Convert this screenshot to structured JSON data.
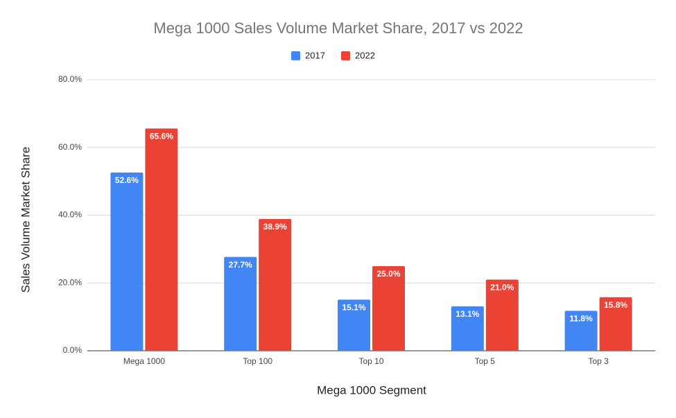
{
  "chart_data": {
    "type": "bar",
    "title": "Mega 1000 Sales Volume Market Share, 2017 vs 2022",
    "x_label": "Mega 1000 Segment",
    "y_label": "Sales Volume Market Share",
    "categories": [
      "Mega 1000",
      "Top 100",
      "Top 10",
      "Top 5",
      "Top 3"
    ],
    "series": [
      {
        "name": "2017",
        "color": "#4285f4",
        "values": [
          52.6,
          27.7,
          15.1,
          13.1,
          11.8
        ],
        "value_labels": [
          "52.6%",
          "27.7%",
          "15.1%",
          "13.1%",
          "11.8%"
        ]
      },
      {
        "name": "2022",
        "color": "#ea4335",
        "values": [
          65.6,
          38.9,
          25.0,
          21.0,
          15.8
        ],
        "value_labels": [
          "65.6%",
          "38.9%",
          "25.0%",
          "21.0%",
          "15.8%"
        ]
      }
    ],
    "ylim": [
      0,
      80
    ],
    "yticks": [
      {
        "value": 0,
        "label": "0.0%"
      },
      {
        "value": 20,
        "label": "20.0%"
      },
      {
        "value": 40,
        "label": "40.0%"
      },
      {
        "value": 60,
        "label": "60.0%"
      },
      {
        "value": 80,
        "label": "80.0%"
      }
    ],
    "grid": true,
    "legend": "top"
  }
}
